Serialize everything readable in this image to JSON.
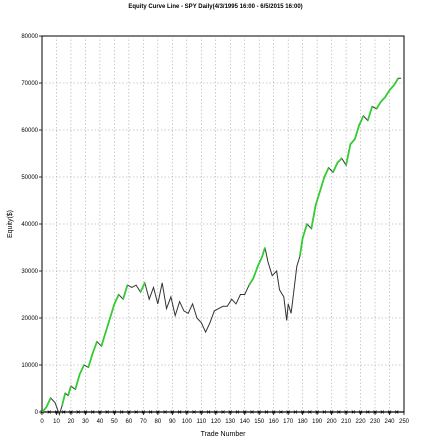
{
  "chart_data": {
    "type": "line",
    "title": "Equity Curve Line - SPY Daily(4/3/1995 16:00 - 6/5/2015 16:00)",
    "xlabel": "Trade Number",
    "ylabel": "Equity($)",
    "xlim": [
      0,
      250
    ],
    "ylim": [
      0,
      80000
    ],
    "x_ticks": [
      0,
      10,
      20,
      30,
      40,
      50,
      60,
      70,
      80,
      90,
      100,
      110,
      120,
      130,
      140,
      150,
      160,
      170,
      180,
      190,
      200,
      210,
      220,
      230,
      240,
      250
    ],
    "y_ticks": [
      0,
      10000,
      20000,
      30000,
      40000,
      50000,
      60000,
      70000,
      80000
    ],
    "grid": true,
    "colors": {
      "equity_line": "#333333",
      "new_high_marker": "#33cc33",
      "baseline": "#000000",
      "grid": "#999999"
    },
    "series": [
      {
        "values": [
          [
            0,
            0
          ],
          [
            3,
            1000
          ],
          [
            6,
            3000
          ],
          [
            9,
            2000
          ],
          [
            12,
            -500
          ],
          [
            14,
            1500
          ],
          [
            16,
            4000
          ],
          [
            18,
            3500
          ],
          [
            20,
            5500
          ],
          [
            23,
            4800
          ],
          [
            26,
            8000
          ],
          [
            29,
            10000
          ],
          [
            32,
            9500
          ],
          [
            35,
            12500
          ],
          [
            38,
            15000
          ],
          [
            41,
            14000
          ],
          [
            44,
            17000
          ],
          [
            47,
            20000
          ],
          [
            50,
            23000
          ],
          [
            53,
            25000
          ],
          [
            56,
            24000
          ],
          [
            59,
            27000
          ],
          [
            62,
            26500
          ],
          [
            65,
            27000
          ],
          [
            68,
            25500
          ],
          [
            71,
            27500
          ],
          [
            74,
            24000
          ],
          [
            77,
            26500
          ],
          [
            80,
            23000
          ],
          [
            83,
            27500
          ],
          [
            86,
            22000
          ],
          [
            89,
            24500
          ],
          [
            92,
            20500
          ],
          [
            95,
            23500
          ],
          [
            98,
            21500
          ],
          [
            101,
            21000
          ],
          [
            104,
            23000
          ],
          [
            107,
            20000
          ],
          [
            110,
            19000
          ],
          [
            113,
            17000
          ],
          [
            116,
            19000
          ],
          [
            119,
            21500
          ],
          [
            122,
            22000
          ],
          [
            125,
            22500
          ],
          [
            128,
            22500
          ],
          [
            131,
            24000
          ],
          [
            134,
            23000
          ],
          [
            137,
            25000
          ],
          [
            140,
            25000
          ],
          [
            143,
            27000
          ],
          [
            146,
            28500
          ],
          [
            149,
            31000
          ],
          [
            152,
            33000
          ],
          [
            154,
            35000
          ],
          [
            156,
            32000
          ],
          [
            159,
            29000
          ],
          [
            162,
            30000
          ],
          [
            164,
            26000
          ],
          [
            167,
            24500
          ],
          [
            169,
            19500
          ],
          [
            170,
            23000
          ],
          [
            172,
            21000
          ],
          [
            174,
            26000
          ],
          [
            176,
            31000
          ],
          [
            178,
            33000
          ],
          [
            180,
            37000
          ],
          [
            183,
            40000
          ],
          [
            186,
            39000
          ],
          [
            189,
            44000
          ],
          [
            192,
            47000
          ],
          [
            195,
            50000
          ],
          [
            198,
            52000
          ],
          [
            201,
            51000
          ],
          [
            204,
            53000
          ],
          [
            207,
            54000
          ],
          [
            210,
            52500
          ],
          [
            213,
            57000
          ],
          [
            216,
            58000
          ],
          [
            219,
            61000
          ],
          [
            222,
            63000
          ],
          [
            225,
            62000
          ],
          [
            228,
            65000
          ],
          [
            231,
            64500
          ],
          [
            234,
            66000
          ],
          [
            237,
            67000
          ],
          [
            240,
            68500
          ],
          [
            243,
            69500
          ],
          [
            246,
            71000
          ],
          [
            248,
            71000
          ]
        ]
      }
    ]
  }
}
